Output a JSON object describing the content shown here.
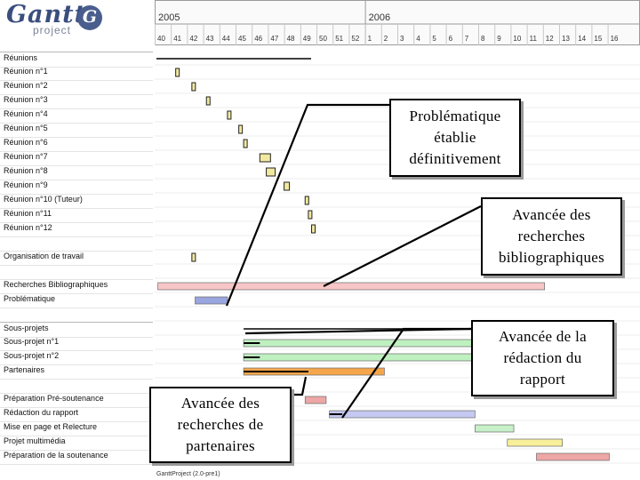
{
  "app": {
    "logo_main": "Gantt",
    "logo_sub": "project",
    "logo_mark": "G"
  },
  "timeline": {
    "years": [
      "2005",
      "2006"
    ],
    "weeks": [
      "40",
      "41",
      "42",
      "43",
      "44",
      "45",
      "46",
      "47",
      "48",
      "49",
      "50",
      "51",
      "52",
      "1",
      "2",
      "3",
      "4",
      "5",
      "6",
      "7",
      "8",
      "9",
      "10",
      "11",
      "12",
      "13",
      "14",
      "15",
      "16"
    ]
  },
  "tasks": [
    {
      "label": "Réunions",
      "group": true
    },
    {
      "label": "Réunion n°1"
    },
    {
      "label": "Réunion n°2"
    },
    {
      "label": "Réunion n°3"
    },
    {
      "label": "Réunion n°4"
    },
    {
      "label": "Réunion n°5"
    },
    {
      "label": "Réunion n°6"
    },
    {
      "label": "Réunion n°7"
    },
    {
      "label": "Réunion n°8"
    },
    {
      "label": "Réunion n°9"
    },
    {
      "label": "Réunion n°10 (Tuteur)"
    },
    {
      "label": "Réunion n°11"
    },
    {
      "label": "Réunion n°12"
    },
    {
      "label": ""
    },
    {
      "label": "Organisation de travail"
    },
    {
      "label": ""
    },
    {
      "label": "Recherches Bibliographiques"
    },
    {
      "label": "Problématique"
    },
    {
      "label": ""
    },
    {
      "label": "Sous-projets",
      "group": true
    },
    {
      "label": "Sous-projet n°1"
    },
    {
      "label": "Sous-projet n°2"
    },
    {
      "label": "Partenaires"
    },
    {
      "label": ""
    },
    {
      "label": "Préparation Pré-soutenance"
    },
    {
      "label": "Rédaction du rapport"
    },
    {
      "label": "Mise en page et Relecture"
    },
    {
      "label": "Projet multimédia"
    },
    {
      "label": "Préparation de la soutenance"
    }
  ],
  "footer": "GanttProject (2.0-pre1)",
  "callouts": [
    {
      "text": [
        "Problématique",
        "établie",
        "définitivement"
      ]
    },
    {
      "text": [
        "Avancée des",
        "recherches",
        "bibliographiques"
      ]
    },
    {
      "text": [
        "Avancée de la",
        "rédaction du",
        "rapport"
      ]
    },
    {
      "text": [
        "Avancée des",
        "recherches de",
        "partenaires"
      ]
    }
  ],
  "colors": {
    "milestone": "#f2e9a0",
    "biblio_bar": "#f7c6c6",
    "problematique_bar": "#9aa6e0",
    "subproject_bar": "#bff0c0",
    "partenaires_bar": "#f5a64a",
    "redaction_bar": "#c5c8f0",
    "relecture_bar": "#c5f0c8",
    "multimedia_bar": "#f8ef9a",
    "soutenance_bar": "#eea6a6"
  }
}
